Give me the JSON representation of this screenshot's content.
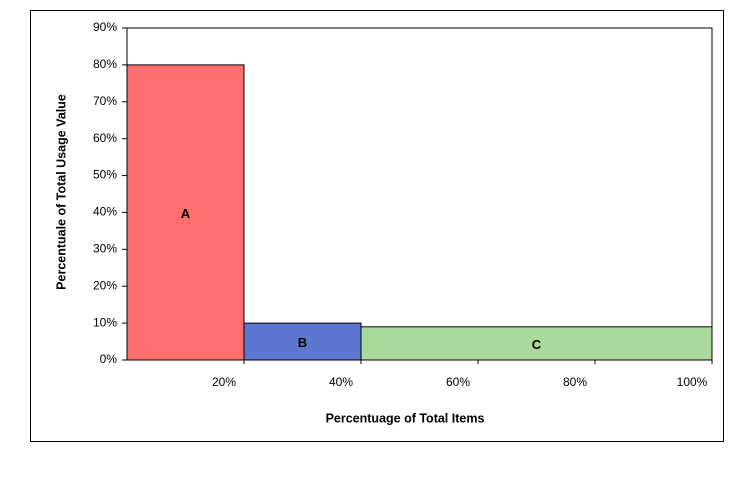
{
  "chart_data": {
    "type": "histogram",
    "x_label": "Percentuage of Total Items",
    "y_label": "Percentuale of Total Usage Value",
    "bins": [
      0,
      20,
      40,
      100
    ],
    "values": [
      80,
      10,
      9
    ],
    "categories": [
      "A",
      "B",
      "C"
    ],
    "colors": [
      "#ff6f6f",
      "#5d77d1",
      "#aad99c"
    ],
    "xlim": [
      0,
      100
    ],
    "xticks": [
      {
        "value": 20,
        "label": "20%"
      },
      {
        "value": 40,
        "label": "40%"
      },
      {
        "value": 60,
        "label": "60%"
      },
      {
        "value": 80,
        "label": "80%"
      },
      {
        "value": 100,
        "label": "100%"
      }
    ],
    "ylim": [
      0,
      90
    ],
    "yticks": [
      {
        "value": 0,
        "label": "0%"
      },
      {
        "value": 10,
        "label": "10%"
      },
      {
        "value": 20,
        "label": "20%"
      },
      {
        "value": 30,
        "label": "30%"
      },
      {
        "value": 40,
        "label": "40%"
      },
      {
        "value": 50,
        "label": "50%"
      },
      {
        "value": 60,
        "label": "60%"
      },
      {
        "value": 70,
        "label": "70%"
      },
      {
        "value": 80,
        "label": "80%"
      },
      {
        "value": 90,
        "label": "90%"
      }
    ],
    "grid": false
  }
}
